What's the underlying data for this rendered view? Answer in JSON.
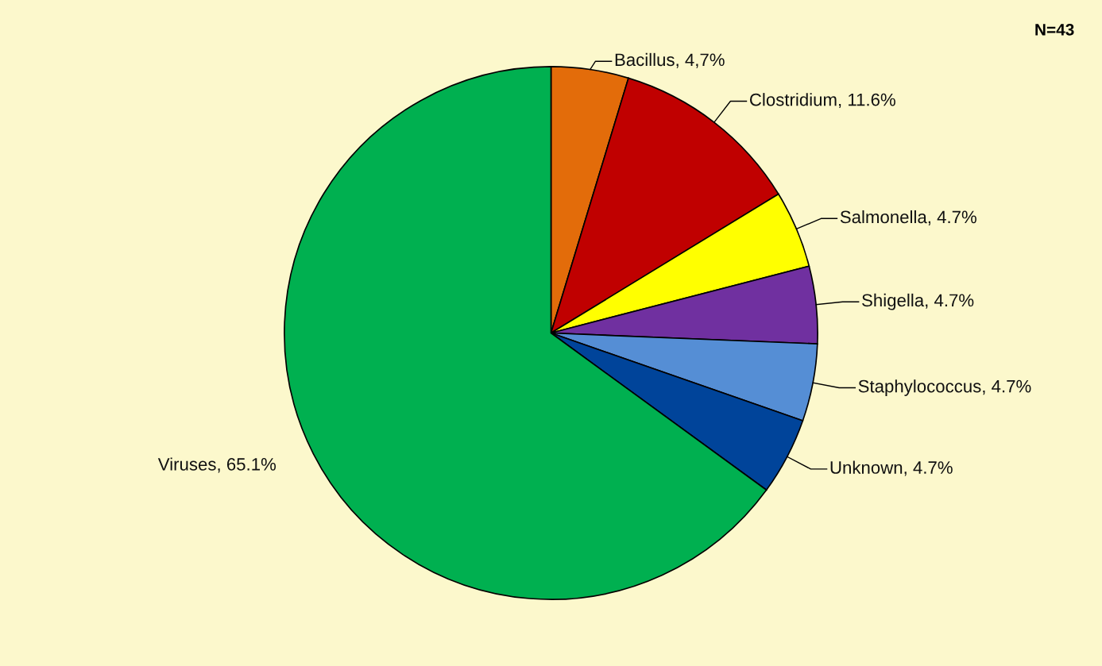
{
  "chart_data": {
    "type": "pie",
    "categories": [
      "Bacillus",
      "Clostridium",
      "Salmonella",
      "Shigella",
      "Staphylococcus",
      "Unknown",
      "Viruses"
    ],
    "values": [
      4.7,
      11.6,
      4.7,
      4.7,
      4.7,
      4.7,
      65.1
    ],
    "value_labels": [
      "4,7%",
      "11.6%",
      "4.7%",
      "4.7%",
      "4.7%",
      "4.7%",
      "65.1%"
    ],
    "colors": [
      "#e36c0a",
      "#c00000",
      "#ffff00",
      "#7030a0",
      "#558ed5",
      "#00449a",
      "#00b050"
    ],
    "annotations": [
      "N=43"
    ]
  }
}
